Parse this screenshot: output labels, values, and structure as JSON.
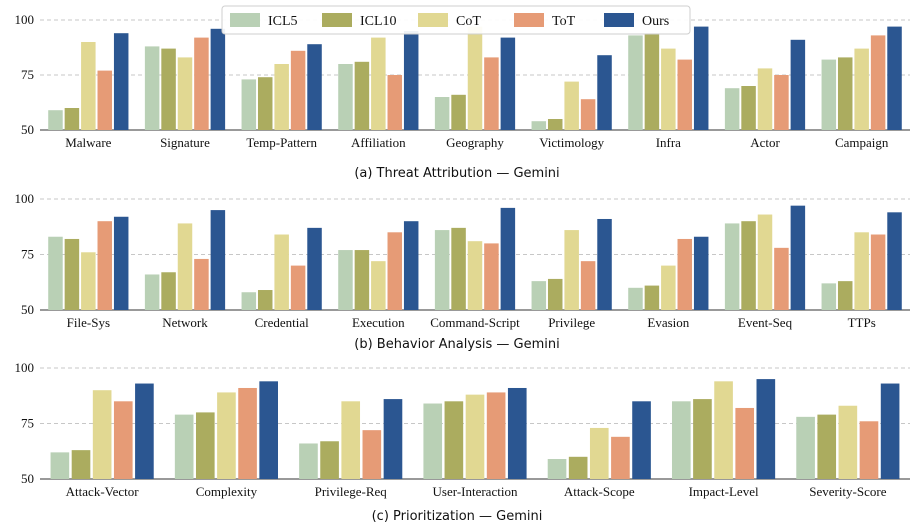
{
  "legend": {
    "items": [
      {
        "name": "ICL5",
        "color": "#b9d0b5"
      },
      {
        "name": "ICL10",
        "color": "#abac5f"
      },
      {
        "name": "CoT",
        "color": "#e1d892"
      },
      {
        "name": "ToT",
        "color": "#e69b76"
      },
      {
        "name": "Ours",
        "color": "#2b5691"
      }
    ]
  },
  "chart_data": [
    {
      "type": "bar",
      "title": "(a) Threat Attribution — Gemini",
      "ylim": [
        50,
        100
      ],
      "yticks": [
        "50",
        "75",
        "100"
      ],
      "categories": [
        "Malware",
        "Signature",
        "Temp-Pattern",
        "Affiliation",
        "Geography",
        "Victimology",
        "Infra",
        "Actor",
        "Campaign"
      ],
      "series": [
        {
          "name": "ICL5",
          "values": [
            59,
            88,
            73,
            80,
            65,
            54,
            93,
            69,
            82
          ]
        },
        {
          "name": "ICL10",
          "values": [
            60,
            87,
            74,
            81,
            66,
            55,
            94,
            70,
            83
          ]
        },
        {
          "name": "CoT",
          "values": [
            90,
            83,
            80,
            92,
            97,
            72,
            87,
            78,
            87
          ]
        },
        {
          "name": "ToT",
          "values": [
            77,
            92,
            86,
            75,
            83,
            64,
            82,
            75,
            93
          ]
        },
        {
          "name": "Ours",
          "values": [
            94,
            96,
            89,
            95,
            92,
            84,
            97,
            91,
            97
          ]
        }
      ]
    },
    {
      "type": "bar",
      "title": "(b) Behavior Analysis — Gemini",
      "ylim": [
        50,
        100
      ],
      "yticks": [
        "50",
        "75",
        "100"
      ],
      "categories": [
        "File-Sys",
        "Network",
        "Credential",
        "Execution",
        "Command-Script",
        "Privilege",
        "Evasion",
        "Event-Seq",
        "TTPs"
      ],
      "series": [
        {
          "name": "ICL5",
          "values": [
            83,
            66,
            58,
            77,
            86,
            63,
            60,
            89,
            62
          ]
        },
        {
          "name": "ICL10",
          "values": [
            82,
            67,
            59,
            77,
            87,
            64,
            61,
            90,
            63
          ]
        },
        {
          "name": "CoT",
          "values": [
            76,
            89,
            84,
            72,
            81,
            86,
            70,
            93,
            85
          ]
        },
        {
          "name": "ToT",
          "values": [
            90,
            73,
            70,
            85,
            80,
            72,
            82,
            78,
            84
          ]
        },
        {
          "name": "Ours",
          "values": [
            92,
            95,
            87,
            90,
            96,
            91,
            83,
            97,
            94
          ]
        }
      ]
    },
    {
      "type": "bar",
      "title": "(c) Prioritization — Gemini",
      "ylim": [
        50,
        100
      ],
      "yticks": [
        "50",
        "75",
        "100"
      ],
      "categories": [
        "Attack-Vector",
        "Complexity",
        "Privilege-Req",
        "User-Interaction",
        "Attack-Scope",
        "Impact-Level",
        "Severity-Score"
      ],
      "series": [
        {
          "name": "ICL5",
          "values": [
            62,
            79,
            66,
            84,
            59,
            85,
            78
          ]
        },
        {
          "name": "ICL10",
          "values": [
            63,
            80,
            67,
            85,
            60,
            86,
            79
          ]
        },
        {
          "name": "CoT",
          "values": [
            90,
            89,
            85,
            88,
            73,
            94,
            83
          ]
        },
        {
          "name": "ToT",
          "values": [
            85,
            91,
            72,
            89,
            69,
            82,
            76
          ]
        },
        {
          "name": "Ours",
          "values": [
            93,
            94,
            86,
            91,
            85,
            95,
            93
          ]
        }
      ]
    }
  ]
}
